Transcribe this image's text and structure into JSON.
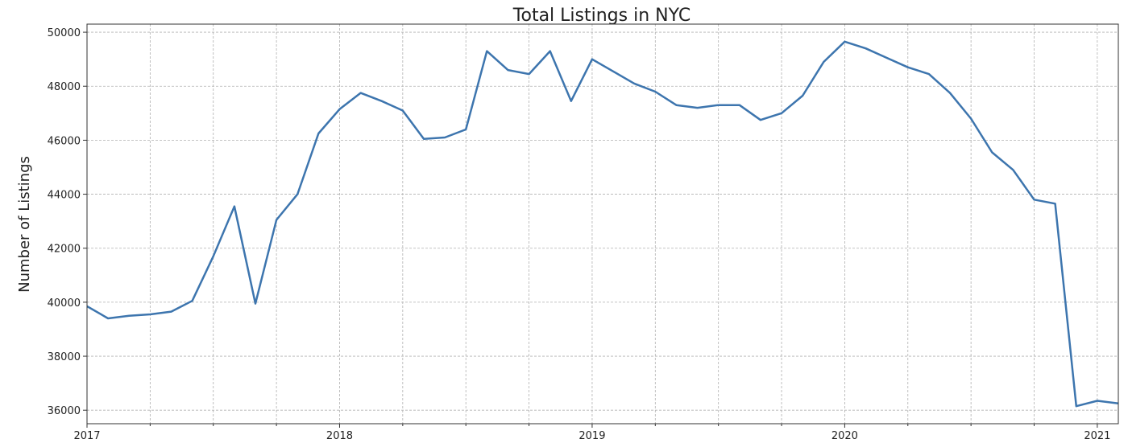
{
  "chart_data": {
    "type": "line",
    "title": "Total Listings in NYC",
    "xlabel": "",
    "ylabel": "Number of Listings",
    "grid": true,
    "x_tick_labels": [
      "2017",
      "2018",
      "2019",
      "2020",
      "2021"
    ],
    "y_tick_labels": [
      "36000",
      "38000",
      "40000",
      "42000",
      "44000",
      "46000",
      "48000",
      "50000"
    ],
    "ylim": [
      35500,
      50300
    ],
    "xlim": [
      "2017-01",
      "2021-02"
    ],
    "series": [
      {
        "color": "#3d75ae",
        "x": [
          "2017-01",
          "2017-02",
          "2017-03",
          "2017-04",
          "2017-05",
          "2017-06",
          "2017-07",
          "2017-08",
          "2017-09",
          "2017-10",
          "2017-11",
          "2017-12",
          "2018-01",
          "2018-02",
          "2018-03",
          "2018-04",
          "2018-05",
          "2018-06",
          "2018-07",
          "2018-08",
          "2018-09",
          "2018-10",
          "2018-11",
          "2018-12",
          "2019-01",
          "2019-02",
          "2019-03",
          "2019-04",
          "2019-05",
          "2019-06",
          "2019-07",
          "2019-08",
          "2019-09",
          "2019-10",
          "2019-11",
          "2019-12",
          "2020-01",
          "2020-02",
          "2020-03",
          "2020-04",
          "2020-05",
          "2020-06",
          "2020-07",
          "2020-08",
          "2020-09",
          "2020-10",
          "2020-11",
          "2020-12",
          "2021-01",
          "2021-02"
        ],
        "values": [
          39850,
          39400,
          39500,
          39550,
          39650,
          40050,
          41700,
          43550,
          39950,
          43050,
          44000,
          46250,
          47150,
          47750,
          47450,
          47100,
          46050,
          46100,
          46400,
          49300,
          48600,
          48450,
          49300,
          47450,
          49000,
          48550,
          48100,
          47800,
          47300,
          47200,
          47300,
          47300,
          46750,
          47000,
          47650,
          48900,
          49650,
          49400,
          49050,
          48700,
          48450,
          47750,
          46800,
          45550,
          44900,
          43800,
          43650,
          36150,
          36350,
          36250
        ]
      }
    ]
  }
}
